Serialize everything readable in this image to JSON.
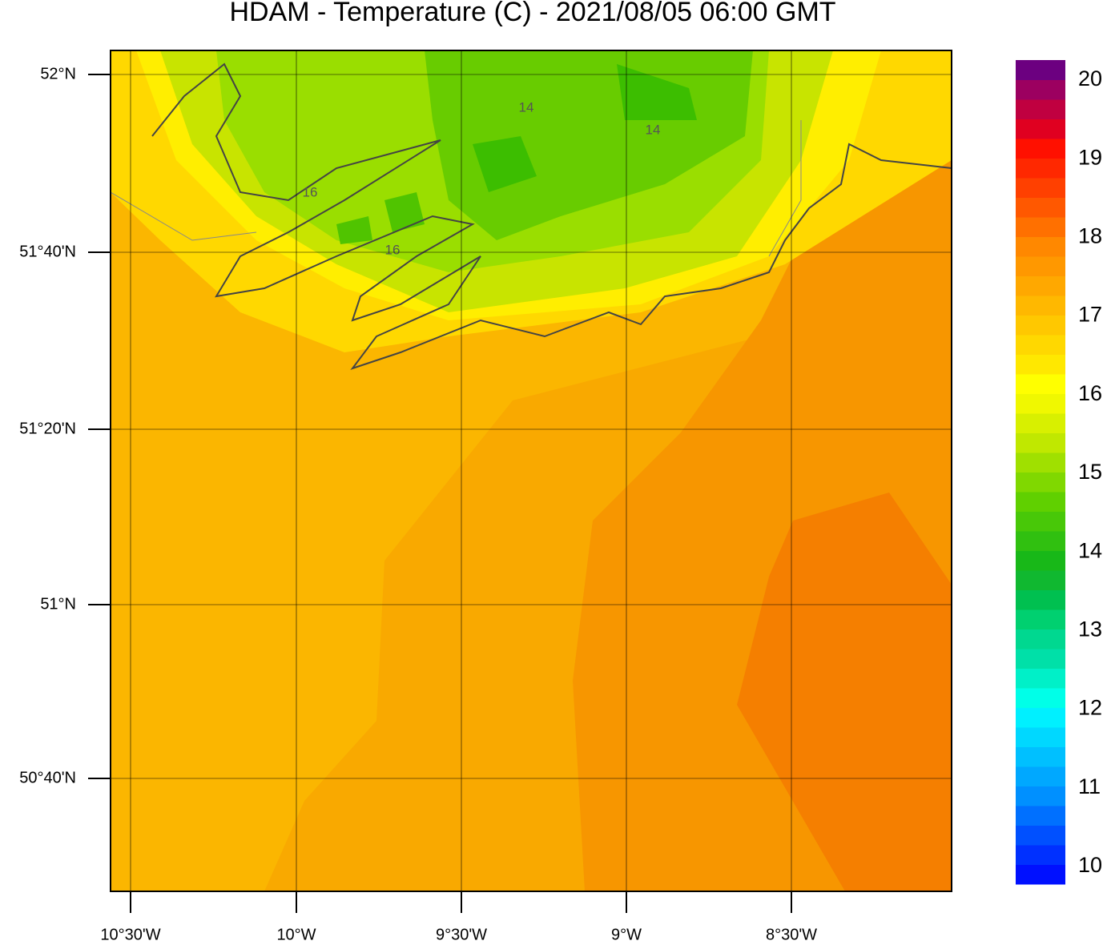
{
  "map": {
    "title": "HDAM - Temperature (C)  -  2021/08/05  06:00 GMT",
    "lat_labels": [
      "52°N",
      "51°40'N",
      "51°20'N",
      "51°N",
      "50°40'N"
    ],
    "lon_labels": [
      "10°30'W",
      "10°W",
      "9°30'W",
      "9°W",
      "8°30'W"
    ],
    "contour_labels": [
      "14",
      "14",
      "16",
      "16"
    ]
  },
  "colorbar": {
    "labels": [
      10,
      11,
      12,
      13,
      14,
      15,
      16,
      17,
      18,
      19,
      20
    ],
    "colors": [
      "#0010ff",
      "#0030ff",
      "#0050ff",
      "#0070ff",
      "#0090ff",
      "#00a8ff",
      "#00c0ff",
      "#00d8ff",
      "#00f0ff",
      "#00ffe8",
      "#00f0c8",
      "#00e0a8",
      "#00d890",
      "#00d070",
      "#00c050",
      "#10b830",
      "#18b818",
      "#30c010",
      "#48c808",
      "#60d000",
      "#80d800",
      "#a0e000",
      "#c0e800",
      "#d8f000",
      "#f0f800",
      "#ffff00",
      "#ffe800",
      "#ffd800",
      "#ffc800",
      "#ffb800",
      "#ffa800",
      "#ff9800",
      "#ff8800",
      "#ff7000",
      "#ff5800",
      "#ff4000",
      "#ff2800",
      "#ff1000",
      "#e00020",
      "#c00040",
      "#9c0060",
      "#6c0080"
    ]
  }
}
